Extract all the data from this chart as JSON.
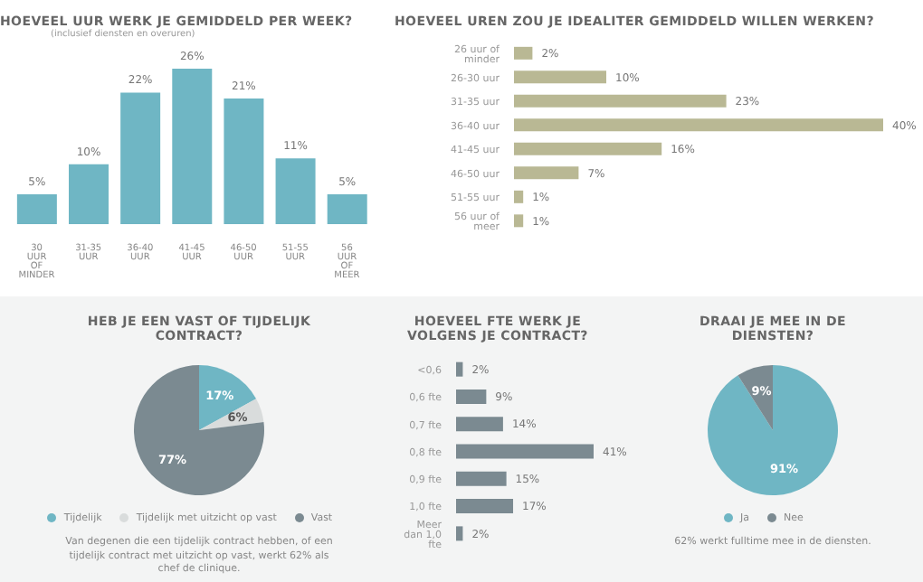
{
  "chart_data": [
    {
      "type": "bar",
      "title": "HOEVEEL UUR WERK JE GEMIDDELD PER WEEK?",
      "subtitle": "(inclusief diensten en overuren)",
      "categories": [
        "30 UUR OF MINDER",
        "31-35 UUR",
        "36-40 UUR",
        "41-45 UUR",
        "46-50 UUR",
        "51-55 UUR",
        "56 UUR OF MEER"
      ],
      "values": [
        5,
        10,
        22,
        26,
        21,
        11,
        5
      ],
      "value_labels": [
        "5%",
        "10%",
        "22%",
        "26%",
        "21%",
        "11%",
        "5%"
      ],
      "color": "#6fb6c4"
    },
    {
      "type": "bar",
      "orientation": "horizontal",
      "title": "HOEVEEL UREN ZOU JE IDEALITER GEMIDDELD WILLEN WERKEN?",
      "categories": [
        "26 uur of minder",
        "26-30 uur",
        "31-35 uur",
        "36-40 uur",
        "41-45 uur",
        "46-50 uur",
        "51-55 uur",
        "56 uur of meer"
      ],
      "values": [
        2,
        10,
        23,
        40,
        16,
        7,
        1,
        1
      ],
      "value_labels": [
        "2%",
        "10%",
        "23%",
        "40%",
        "16%",
        "7%",
        "1%",
        "1%"
      ],
      "color": "#b9b894"
    },
    {
      "type": "pie",
      "title": "HEB JE EEN VAST OF TIJDELIJK CONTRACT?",
      "categories": [
        "Tijdelijk",
        "Tijdelijk met uitzicht op vast",
        "Vast"
      ],
      "values": [
        17,
        6,
        77
      ],
      "value_labels": [
        "17%",
        "6%",
        "77%"
      ],
      "colors": [
        "#6fb6c4",
        "#d9dcdc",
        "#7b8a91"
      ],
      "legend": "bottom",
      "annotations": [
        "Van degenen die een tijdelijk contract hebben, of een tijdelijk contract met uitzicht op vast, werkt 62% als chef de clinique."
      ]
    },
    {
      "type": "bar",
      "orientation": "horizontal",
      "title": "HOEVEEL FTE WERK JE VOLGENS JE CONTRACT?",
      "categories": [
        "<0,6",
        "0,6 fte",
        "0,7 fte",
        "0,8 fte",
        "0,9 fte",
        "1,0 fte",
        "Meer dan 1,0 fte"
      ],
      "values": [
        2,
        9,
        14,
        41,
        15,
        17,
        2
      ],
      "value_labels": [
        "2%",
        "9%",
        "14%",
        "41%",
        "15%",
        "17%",
        "2%"
      ],
      "color": "#7b8a91"
    },
    {
      "type": "pie",
      "title": "DRAAI JE MEE IN DE DIENSTEN?",
      "categories": [
        "Ja",
        "Nee"
      ],
      "values": [
        91,
        9
      ],
      "value_labels": [
        "91%",
        "9%"
      ],
      "colors": [
        "#6fb6c4",
        "#7b8a91"
      ],
      "legend": "bottom",
      "annotations": [
        "62% werkt fulltime mee in de diensten."
      ]
    }
  ]
}
